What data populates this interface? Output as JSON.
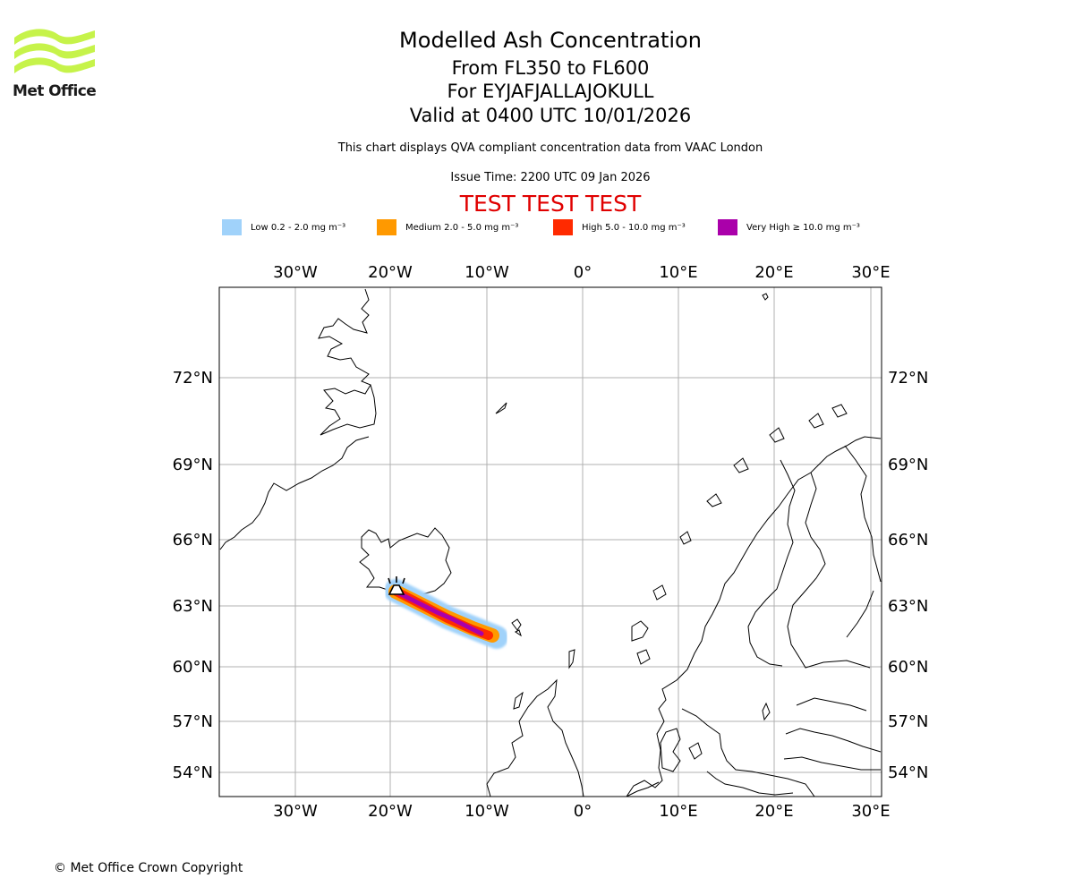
{
  "logo": {
    "text": "Met Office",
    "icon": "met-office-wave-logo",
    "color": "#c6f34a"
  },
  "title": {
    "line1": "Modelled Ash Concentration",
    "line2": "From FL350 to FL600",
    "line3": "For EYJAFJALLAJOKULL",
    "line4": "Valid at 0400 UTC 10/01/2026"
  },
  "description": "This chart displays QVA compliant concentration data from VAAC London",
  "issue_time": "Issue Time: 2200 UTC 09 Jan 2026",
  "test_banner": "TEST TEST TEST",
  "legend": [
    {
      "label": "Low 0.2 - 2.0 mg m⁻³",
      "color": "#a0d2fa"
    },
    {
      "label": "Medium 2.0 - 5.0 mg m⁻³",
      "color": "#ff9900"
    },
    {
      "label": "High 5.0 - 10.0 mg m⁻³",
      "color": "#ff2a00"
    },
    {
      "label": "Very High ≥ 10.0 mg m⁻³",
      "color": "#aa00aa"
    }
  ],
  "map": {
    "longitude_ticks": [
      "30°W",
      "20°W",
      "10°W",
      "0°",
      "10°E",
      "20°E",
      "30°E"
    ],
    "latitude_ticks": [
      "72°N",
      "69°N",
      "66°N",
      "63°N",
      "60°N",
      "57°N",
      "54°N"
    ],
    "volcano_icon": "volcano-marker-icon",
    "gridline_color": "#b0b0b0"
  },
  "copyright": "© Met Office Crown Copyright"
}
